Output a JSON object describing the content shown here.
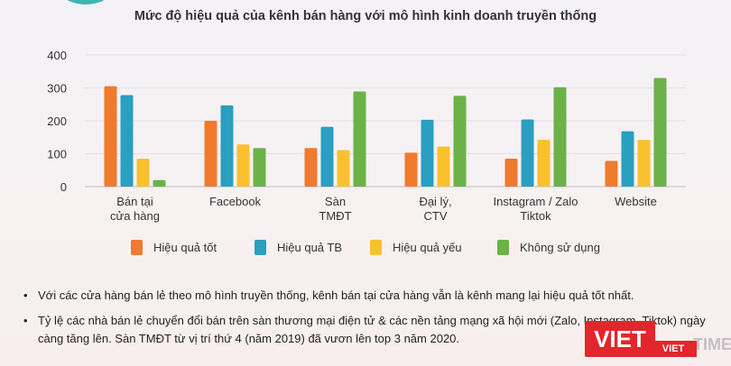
{
  "chart_data": {
    "type": "bar",
    "title": "Mức độ hiệu quả của kênh bán hàng với mô hình kinh doanh truyền thống",
    "categories": [
      [
        "Bán tại",
        "cửa hàng"
      ],
      [
        "Facebook"
      ],
      [
        "Sàn",
        "TMĐT"
      ],
      [
        "Đại lý,",
        "CTV"
      ],
      [
        "Instagram / Zalo",
        "Tiktok"
      ],
      [
        "Website"
      ]
    ],
    "series": [
      {
        "name": "Hiệu quả tốt",
        "color": "#f07a2e",
        "values": [
          305,
          200,
          117,
          103,
          85,
          78
        ]
      },
      {
        "name": "Hiệu quả TB",
        "color": "#2a9fbf",
        "values": [
          278,
          247,
          182,
          203,
          204,
          168
        ]
      },
      {
        "name": "Hiệu quả yếu",
        "color": "#f9c12e",
        "values": [
          85,
          128,
          111,
          122,
          142,
          142
        ]
      },
      {
        "name": "Không sử dụng",
        "color": "#6cb248",
        "values": [
          20,
          117,
          289,
          276,
          302,
          330
        ]
      }
    ],
    "yticks": [
      0,
      100,
      200,
      300,
      400
    ],
    "ylim": [
      0,
      400
    ],
    "grid": true,
    "legend_position": "bottom"
  },
  "notes": [
    "Với các cửa hàng bán lẻ theo mô hình truyền thống, kênh bán tại cửa hàng vẫn là kênh mang lại hiệu quả tốt nhất.",
    "Tỷ lệ các nhà bán lẻ chuyển đổi bán trên sàn thương mại điện tử & các nền tảng mạng xã hội mới (Zalo, Instagram, Tiktok) ngày càng tăng lên. Sàn TMĐT từ vị trí thứ 4 (năm 2019) đã vươn lên top 3 năm 2020."
  ],
  "watermark": {
    "brand": "VIET",
    "sub": "VIET",
    "extra": "TIMES"
  }
}
